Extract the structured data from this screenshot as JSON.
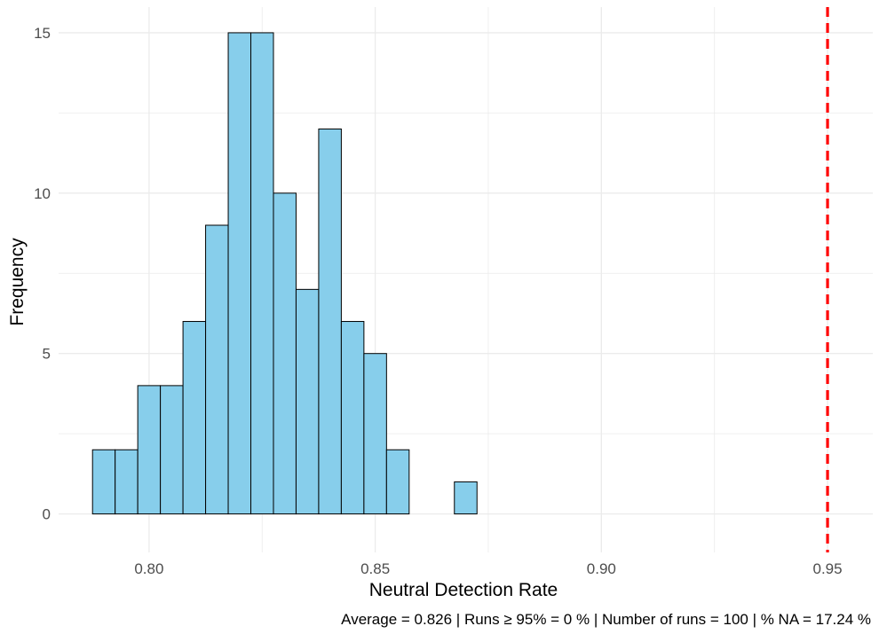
{
  "chart_data": {
    "type": "bar",
    "subtype": "histogram",
    "title": "",
    "xlabel": "Neutral Detection Rate",
    "ylabel": "Frequency",
    "caption": "Average = 0.826 | Runs ≥ 95% = 0 % | Number of runs = 100 | % NA = 17.24 %",
    "bin_width": 0.005,
    "bin_centers": [
      0.79,
      0.795,
      0.8,
      0.805,
      0.81,
      0.815,
      0.82,
      0.825,
      0.83,
      0.835,
      0.84,
      0.845,
      0.85,
      0.855,
      0.86,
      0.865,
      0.87,
      0.875,
      0.88,
      0.885,
      0.89,
      0.895,
      0.9,
      0.905,
      0.91,
      0.915,
      0.92,
      0.925,
      0.93,
      0.935,
      0.94,
      0.945,
      0.95
    ],
    "values": [
      2,
      2,
      4,
      4,
      6,
      9,
      15,
      15,
      10,
      7,
      12,
      6,
      5,
      2,
      0,
      0,
      1,
      0,
      0,
      0,
      0,
      0,
      0,
      0,
      0,
      0,
      0,
      0,
      0,
      0,
      0,
      0,
      0
    ],
    "xlim": [
      0.78,
      0.96
    ],
    "ylim": [
      -1.2,
      15.8
    ],
    "x_ticks": [
      0.8,
      0.85,
      0.9,
      0.95
    ],
    "x_tick_labels": [
      "0.80",
      "0.85",
      "0.90",
      "0.95"
    ],
    "y_ticks": [
      0,
      5,
      10,
      15
    ],
    "y_tick_labels": [
      "0",
      "5",
      "10",
      "15"
    ],
    "reference_line": {
      "x": 0.95,
      "style": "dashed",
      "color": "#ff0000"
    },
    "bar_fill": "#87ceeb",
    "bar_outline": "#000000",
    "grid": true,
    "grid_color": "#ebebeb"
  }
}
